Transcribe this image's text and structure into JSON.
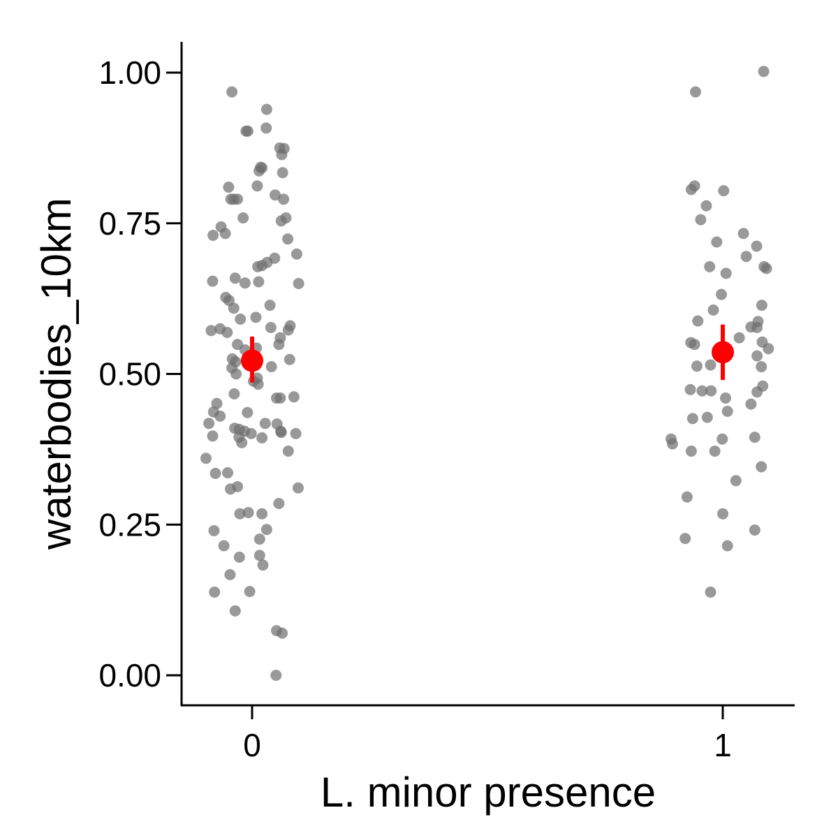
{
  "chart_data": {
    "type": "scatter",
    "title": "",
    "xlabel": "L. minor presence",
    "ylabel": "waterbodies_10km",
    "x_categories": [
      "0",
      "1"
    ],
    "y_ticks": [
      "0.00",
      "0.25",
      "0.50",
      "0.75",
      "1.00"
    ],
    "ylim": [
      -0.05,
      1.05
    ],
    "grid": false,
    "legend": "none",
    "point_color": "#6e6e6e",
    "summary_color": "#ff0000",
    "series": [
      {
        "category": "0",
        "points": [
          {
            "x": -0.043,
            "y": 0.968
          },
          {
            "x": -0.013,
            "y": 0.903
          },
          {
            "x": -0.009,
            "y": 0.903
          },
          {
            "x": 0.031,
            "y": 0.939
          },
          {
            "x": 0.03,
            "y": 0.908
          },
          {
            "x": 0.068,
            "y": 0.874
          },
          {
            "x": 0.063,
            "y": 0.864
          },
          {
            "x": 0.059,
            "y": 0.875
          },
          {
            "x": 0.021,
            "y": 0.842
          },
          {
            "x": 0.018,
            "y": 0.843
          },
          {
            "x": 0.015,
            "y": 0.837
          },
          {
            "x": 0.065,
            "y": 0.834
          },
          {
            "x": 0.011,
            "y": 0.812
          },
          {
            "x": -0.05,
            "y": 0.81
          },
          {
            "x": 0.049,
            "y": 0.797
          },
          {
            "x": -0.045,
            "y": 0.79
          },
          {
            "x": -0.039,
            "y": 0.79
          },
          {
            "x": -0.031,
            "y": 0.79
          },
          {
            "x": 0.067,
            "y": 0.79
          },
          {
            "x": -0.019,
            "y": 0.759
          },
          {
            "x": -0.066,
            "y": 0.744
          },
          {
            "x": 0.062,
            "y": 0.754
          },
          {
            "x": 0.072,
            "y": 0.759
          },
          {
            "x": -0.083,
            "y": 0.73
          },
          {
            "x": -0.057,
            "y": 0.733
          },
          {
            "x": 0.076,
            "y": 0.724
          },
          {
            "x": 0.095,
            "y": 0.699
          },
          {
            "x": 0.048,
            "y": 0.692
          },
          {
            "x": 0.032,
            "y": 0.685
          },
          {
            "x": 0.021,
            "y": 0.68
          },
          {
            "x": 0.012,
            "y": 0.678
          },
          {
            "x": -0.084,
            "y": 0.654
          },
          {
            "x": -0.036,
            "y": 0.659
          },
          {
            "x": -0.015,
            "y": 0.651
          },
          {
            "x": 0.014,
            "y": 0.653
          },
          {
            "x": 0.099,
            "y": 0.65
          },
          {
            "x": -0.056,
            "y": 0.627
          },
          {
            "x": -0.049,
            "y": 0.622
          },
          {
            "x": 0.038,
            "y": 0.614
          },
          {
            "x": -0.039,
            "y": 0.609
          },
          {
            "x": -0.025,
            "y": 0.591
          },
          {
            "x": 0.008,
            "y": 0.594
          },
          {
            "x": -0.087,
            "y": 0.572
          },
          {
            "x": -0.068,
            "y": 0.575
          },
          {
            "x": -0.053,
            "y": 0.569
          },
          {
            "x": 0.081,
            "y": 0.58
          },
          {
            "x": 0.077,
            "y": 0.573
          },
          {
            "x": 0.04,
            "y": 0.577
          },
          {
            "x": -0.031,
            "y": 0.549
          },
          {
            "x": -0.015,
            "y": 0.54
          },
          {
            "x": 0.009,
            "y": 0.543
          },
          {
            "x": 0.06,
            "y": 0.56
          },
          {
            "x": 0.057,
            "y": 0.549
          },
          {
            "x": -0.042,
            "y": 0.525
          },
          {
            "x": -0.035,
            "y": 0.52
          },
          {
            "x": -0.043,
            "y": 0.51
          },
          {
            "x": -0.034,
            "y": 0.5
          },
          {
            "x": 0.041,
            "y": 0.512
          },
          {
            "x": 0.08,
            "y": 0.524
          },
          {
            "x": 0.003,
            "y": 0.488
          },
          {
            "x": 0.011,
            "y": 0.493
          },
          {
            "x": 0.013,
            "y": 0.483
          },
          {
            "x": -0.038,
            "y": 0.467
          },
          {
            "x": -0.075,
            "y": 0.451
          },
          {
            "x": 0.052,
            "y": 0.46
          },
          {
            "x": 0.06,
            "y": 0.46
          },
          {
            "x": 0.089,
            "y": 0.462
          },
          {
            "x": -0.068,
            "y": 0.43
          },
          {
            "x": -0.082,
            "y": 0.437
          },
          {
            "x": -0.092,
            "y": 0.418
          },
          {
            "x": -0.01,
            "y": 0.436
          },
          {
            "x": 0.028,
            "y": 0.418
          },
          {
            "x": 0.053,
            "y": 0.417
          },
          {
            "x": -0.037,
            "y": 0.41
          },
          {
            "x": -0.027,
            "y": 0.408
          },
          {
            "x": -0.016,
            "y": 0.405
          },
          {
            "x": -0.002,
            "y": 0.401
          },
          {
            "x": 0.061,
            "y": 0.405
          },
          {
            "x": 0.062,
            "y": 0.403
          },
          {
            "x": 0.093,
            "y": 0.401
          },
          {
            "x": -0.028,
            "y": 0.395
          },
          {
            "x": -0.022,
            "y": 0.386
          },
          {
            "x": 0.021,
            "y": 0.394
          },
          {
            "x": -0.084,
            "y": 0.397
          },
          {
            "x": 0.077,
            "y": 0.372
          },
          {
            "x": -0.098,
            "y": 0.36
          },
          {
            "x": -0.078,
            "y": 0.335
          },
          {
            "x": -0.052,
            "y": 0.336
          },
          {
            "x": -0.046,
            "y": 0.309
          },
          {
            "x": -0.031,
            "y": 0.313
          },
          {
            "x": 0.098,
            "y": 0.311
          },
          {
            "x": 0.057,
            "y": 0.285
          },
          {
            "x": -0.026,
            "y": 0.268
          },
          {
            "x": -0.008,
            "y": 0.27
          },
          {
            "x": 0.021,
            "y": 0.268
          },
          {
            "x": 0.031,
            "y": 0.242
          },
          {
            "x": -0.081,
            "y": 0.24
          },
          {
            "x": 0.016,
            "y": 0.226
          },
          {
            "x": -0.06,
            "y": 0.215
          },
          {
            "x": -0.027,
            "y": 0.196
          },
          {
            "x": 0.016,
            "y": 0.199
          },
          {
            "x": 0.023,
            "y": 0.183
          },
          {
            "x": -0.047,
            "y": 0.167
          },
          {
            "x": -0.08,
            "y": 0.138
          },
          {
            "x": -0.005,
            "y": 0.139
          },
          {
            "x": -0.036,
            "y": 0.107
          },
          {
            "x": 0.052,
            "y": 0.074
          },
          {
            "x": 0.064,
            "y": 0.07
          },
          {
            "x": 0.051,
            "y": 0.0
          }
        ],
        "mean": 0.522,
        "ci": [
          0.486,
          0.562
        ]
      },
      {
        "category": "1",
        "points": [
          {
            "x": 0.087,
            "y": 1.002
          },
          {
            "x": -0.058,
            "y": 0.968
          },
          {
            "x": -0.06,
            "y": 0.812
          },
          {
            "x": -0.067,
            "y": 0.806
          },
          {
            "x": 0.002,
            "y": 0.804
          },
          {
            "x": -0.035,
            "y": 0.779
          },
          {
            "x": -0.047,
            "y": 0.756
          },
          {
            "x": 0.044,
            "y": 0.733
          },
          {
            "x": -0.013,
            "y": 0.719
          },
          {
            "x": 0.072,
            "y": 0.712
          },
          {
            "x": 0.05,
            "y": 0.695
          },
          {
            "x": 0.088,
            "y": 0.678
          },
          {
            "x": 0.093,
            "y": 0.675
          },
          {
            "x": -0.028,
            "y": 0.678
          },
          {
            "x": 0.007,
            "y": 0.667
          },
          {
            "x": -0.003,
            "y": 0.632
          },
          {
            "x": 0.083,
            "y": 0.614
          },
          {
            "x": -0.02,
            "y": 0.606
          },
          {
            "x": -0.053,
            "y": 0.588
          },
          {
            "x": 0.075,
            "y": 0.587
          },
          {
            "x": 0.06,
            "y": 0.578
          },
          {
            "x": 0.073,
            "y": 0.577
          },
          {
            "x": 0.035,
            "y": 0.56
          },
          {
            "x": 0.084,
            "y": 0.553
          },
          {
            "x": -0.068,
            "y": 0.552
          },
          {
            "x": -0.06,
            "y": 0.549
          },
          {
            "x": 0.097,
            "y": 0.542
          },
          {
            "x": 0.073,
            "y": 0.53
          },
          {
            "x": -0.055,
            "y": 0.513
          },
          {
            "x": -0.026,
            "y": 0.515
          },
          {
            "x": 0.082,
            "y": 0.512
          },
          {
            "x": -0.069,
            "y": 0.474
          },
          {
            "x": -0.044,
            "y": 0.472
          },
          {
            "x": -0.025,
            "y": 0.472
          },
          {
            "x": 0.085,
            "y": 0.48
          },
          {
            "x": 0.073,
            "y": 0.47
          },
          {
            "x": 0.006,
            "y": 0.46
          },
          {
            "x": 0.06,
            "y": 0.45
          },
          {
            "x": 0.01,
            "y": 0.438
          },
          {
            "x": -0.064,
            "y": 0.426
          },
          {
            "x": -0.033,
            "y": 0.428
          },
          {
            "x": -0.11,
            "y": 0.392
          },
          {
            "x": -0.107,
            "y": 0.384
          },
          {
            "x": -0.001,
            "y": 0.392
          },
          {
            "x": 0.068,
            "y": 0.395
          },
          {
            "x": -0.067,
            "y": 0.372
          },
          {
            "x": -0.017,
            "y": 0.372
          },
          {
            "x": 0.082,
            "y": 0.346
          },
          {
            "x": 0.028,
            "y": 0.323
          },
          {
            "x": -0.076,
            "y": 0.296
          },
          {
            "x": 0.0,
            "y": 0.268
          },
          {
            "x": 0.068,
            "y": 0.241
          },
          {
            "x": -0.08,
            "y": 0.227
          },
          {
            "x": 0.01,
            "y": 0.215
          },
          {
            "x": -0.026,
            "y": 0.138
          }
        ],
        "mean": 0.536,
        "ci": [
          0.49,
          0.582
        ]
      }
    ]
  }
}
